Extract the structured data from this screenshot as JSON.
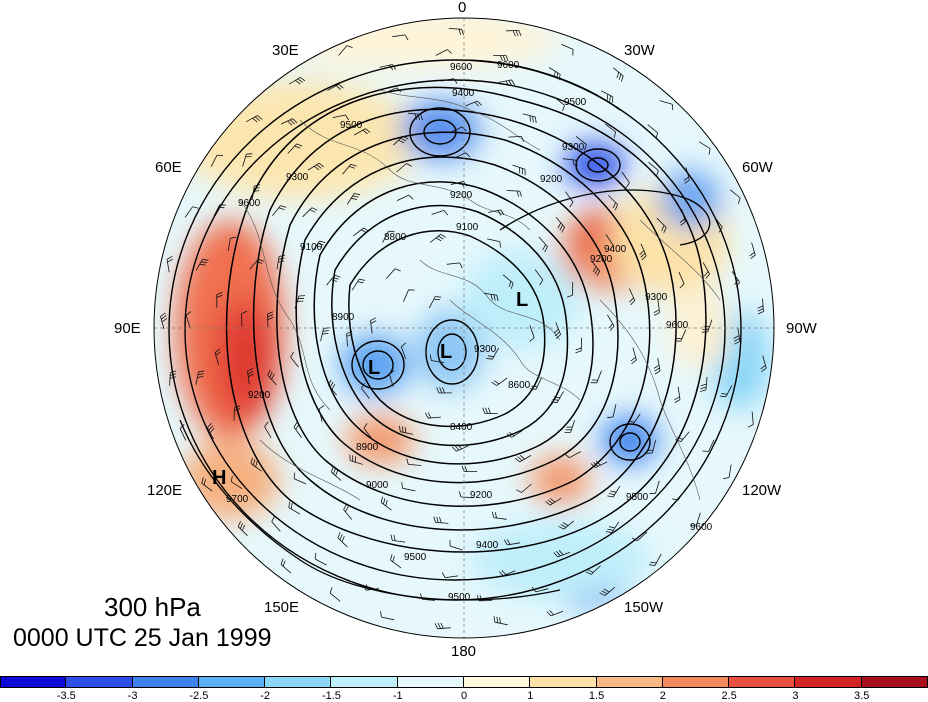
{
  "title": {
    "level": "300 hPa",
    "time": "0000 UTC 25 Jan 1999"
  },
  "longitude_labels": [
    {
      "id": "0",
      "text": "0"
    },
    {
      "id": "30w",
      "text": "30W"
    },
    {
      "id": "60w",
      "text": "60W"
    },
    {
      "id": "90w",
      "text": "90W"
    },
    {
      "id": "120w",
      "text": "120W"
    },
    {
      "id": "150w",
      "text": "150W"
    },
    {
      "id": "180",
      "text": "180"
    },
    {
      "id": "150e",
      "text": "150E"
    },
    {
      "id": "120e",
      "text": "120E"
    },
    {
      "id": "90e",
      "text": "90E"
    },
    {
      "id": "60e",
      "text": "60E"
    },
    {
      "id": "30e",
      "text": "30E"
    }
  ],
  "pressure_centers": [
    {
      "type": "L",
      "text": "L"
    },
    {
      "type": "L",
      "text": "L"
    },
    {
      "type": "L",
      "text": "L"
    },
    {
      "type": "H",
      "text": "H"
    }
  ],
  "contour_labels": [
    "9600",
    "9600",
    "9500",
    "9400",
    "9500",
    "9300",
    "9200",
    "9100",
    "9200",
    "8900",
    "8800",
    "9300",
    "8600",
    "8400",
    "9000",
    "9200",
    "9400",
    "9500",
    "9500",
    "9600",
    "9700",
    "9600",
    "9300",
    "9100",
    "9200",
    "8900",
    "9200",
    "9400",
    "9300",
    "9600",
    "9500"
  ],
  "colorbar": {
    "colors": [
      "#0e0ad8",
      "#2a4ee6",
      "#3e82ee",
      "#5ab0f4",
      "#8cd6f8",
      "#bfeefb",
      "#e4f8fc",
      "#fff8de",
      "#fde2a8",
      "#f9b884",
      "#f4885e",
      "#ea5040",
      "#d22424",
      "#a80e1c"
    ],
    "tick_labels": [
      "-3.5",
      "-3",
      "-2.5",
      "-2",
      "-1.5",
      "-1",
      "0",
      "1",
      "1.5",
      "2",
      "2.5",
      "3",
      "3.5"
    ]
  }
}
